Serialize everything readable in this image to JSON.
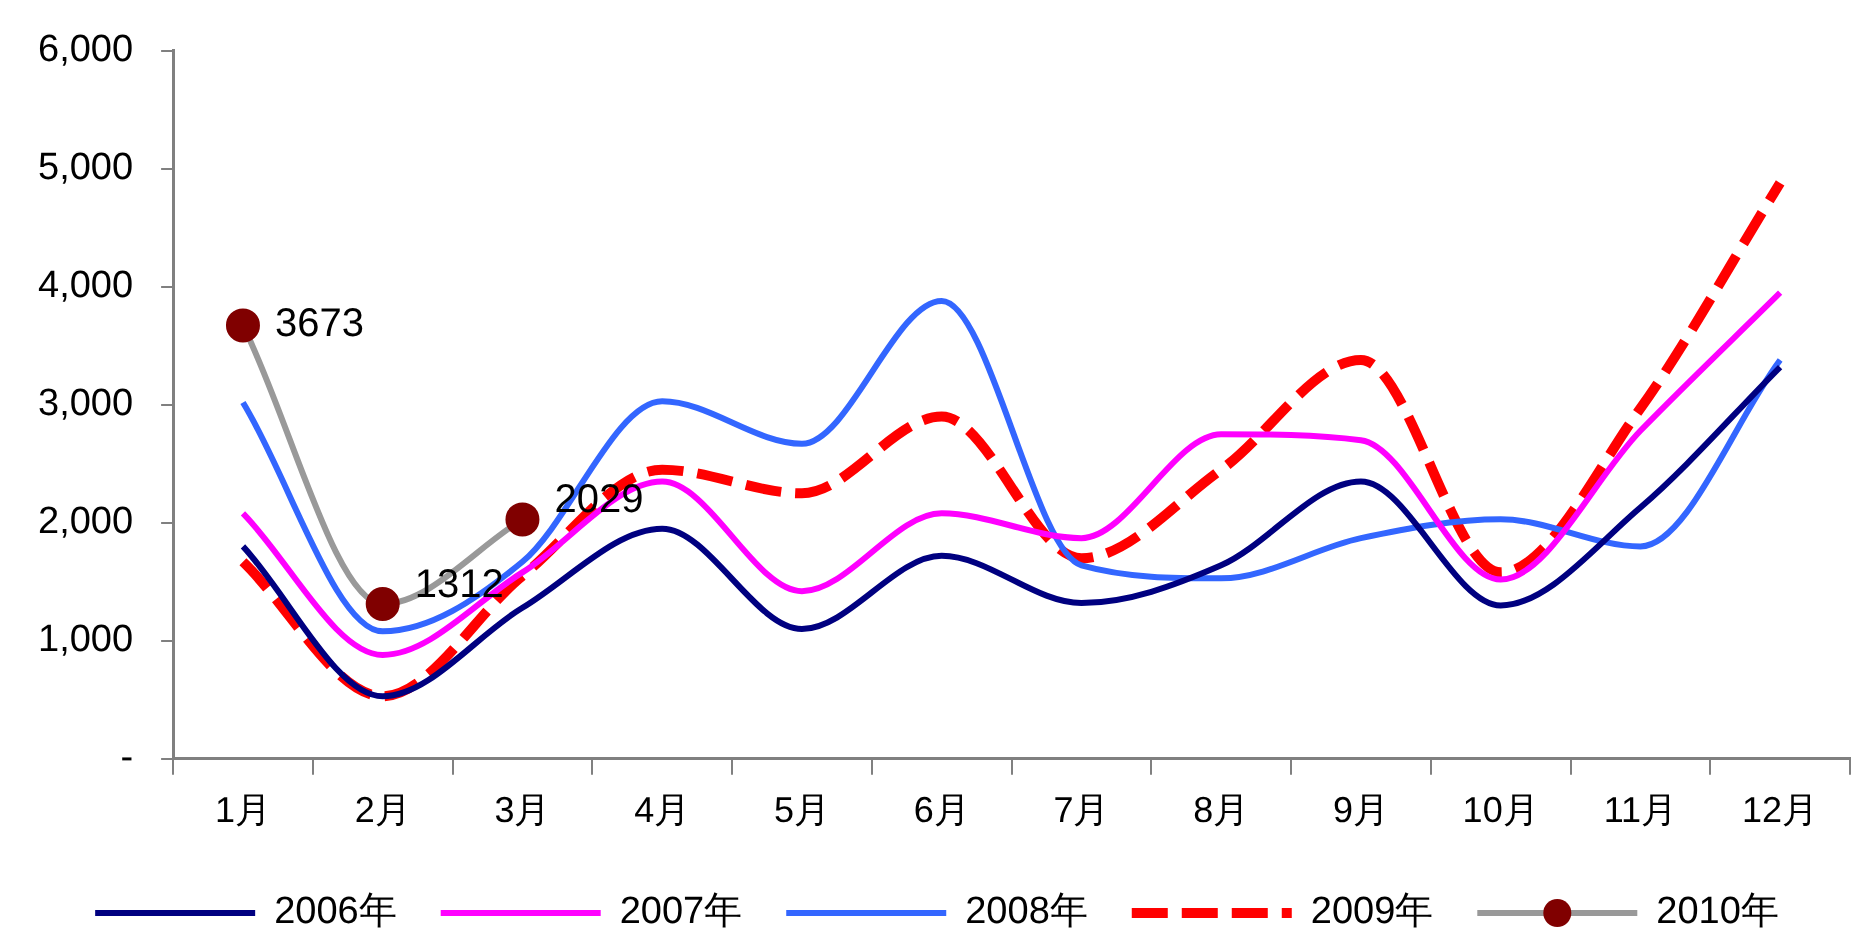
{
  "chart_data": {
    "type": "line",
    "categories": [
      "1月",
      "2月",
      "3月",
      "4月",
      "5月",
      "6月",
      "7月",
      "8月",
      "9月",
      "10月",
      "11月",
      "12月"
    ],
    "ylim": [
      0,
      6000
    ],
    "yticks": [
      {
        "value": 0,
        "label": "-"
      },
      {
        "value": 1000,
        "label": "1,000"
      },
      {
        "value": 2000,
        "label": "2,000"
      },
      {
        "value": 3000,
        "label": "3,000"
      },
      {
        "value": 4000,
        "label": "4,000"
      },
      {
        "value": 5000,
        "label": "5,000"
      },
      {
        "value": 6000,
        "label": "6,000"
      }
    ],
    "grid": false,
    "legend": "bottom",
    "series": [
      {
        "name": "2006年",
        "color": "#000080",
        "marker": "none",
        "line_style": "solid",
        "values": [
          1800,
          530,
          1280,
          1950,
          1100,
          1720,
          1320,
          1640,
          2350,
          1300,
          2130,
          3320
        ]
      },
      {
        "name": "2007年",
        "color": "#ff00ff",
        "marker": "none",
        "line_style": "solid",
        "values": [
          2080,
          880,
          1580,
          2350,
          1420,
          2080,
          1870,
          2750,
          2700,
          1520,
          2780,
          3950
        ]
      },
      {
        "name": "2008年",
        "color": "#3366ff",
        "marker": "none",
        "line_style": "solid",
        "values": [
          3020,
          1080,
          1670,
          3030,
          2670,
          3880,
          1640,
          1530,
          1870,
          2030,
          1800,
          3380
        ]
      },
      {
        "name": "2009年",
        "color": "#ff0000",
        "marker": "none",
        "line_style": "dashed",
        "values": [
          1670,
          530,
          1550,
          2450,
          2250,
          2900,
          1700,
          2450,
          3380,
          1580,
          2970,
          4880
        ]
      },
      {
        "name": "2010年",
        "color": "#999999",
        "marker": "circle",
        "colors": [
          "#800000",
          "#800000",
          "#800000",
          null,
          null,
          null,
          null,
          null,
          null,
          null,
          null,
          null
        ],
        "line_style": "solid",
        "values": [
          3673,
          1312,
          2029,
          null,
          null,
          null,
          null,
          null,
          null,
          null,
          null,
          null
        ],
        "value_labels": [
          "3673",
          "1312",
          "2029",
          null,
          null,
          null,
          null,
          null,
          null,
          null,
          null,
          null
        ]
      }
    ]
  }
}
